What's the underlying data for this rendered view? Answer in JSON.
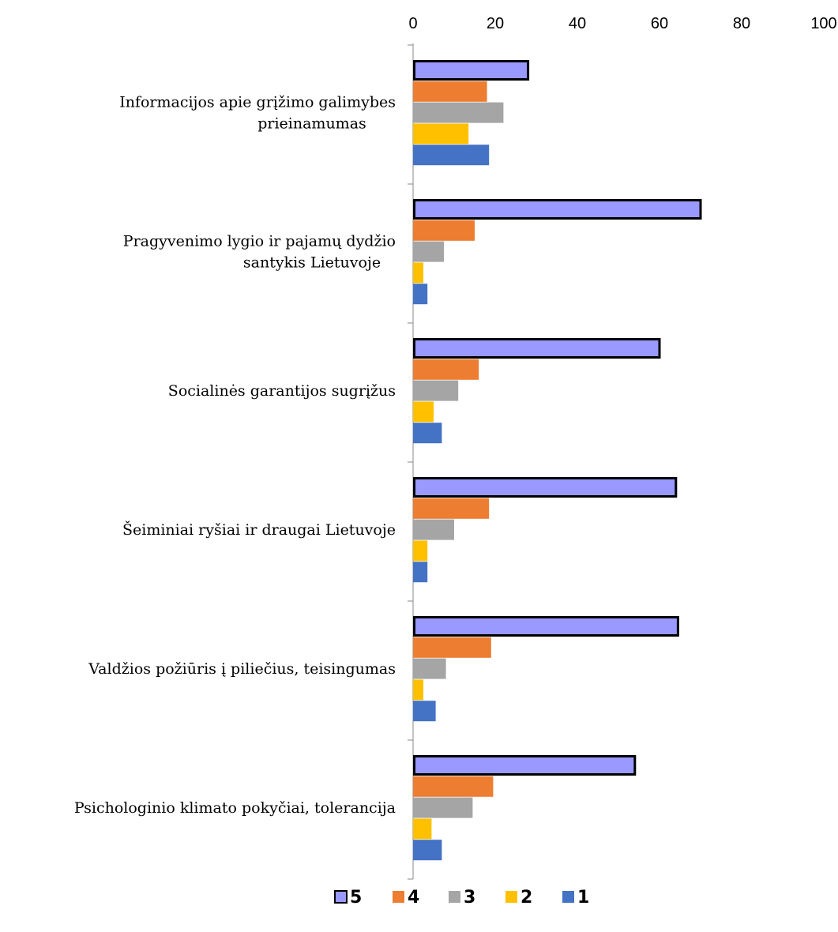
{
  "chart_data": {
    "type": "bar",
    "orientation": "horizontal",
    "categories": [
      [
        "Informacijos apie grįžimo galimybes",
        "prieinamumas"
      ],
      [
        "Pragyvenimo lygio ir  pajamų dydžio",
        "santykis Lietuvoje"
      ],
      [
        "Socialinės garantijos sugrįžus"
      ],
      [
        "Šeiminiai ryšiai ir draugai Lietuvoje"
      ],
      [
        "Valdžios požiūris į piliečius, teisingumas"
      ],
      [
        "Psichologinio klimato pokyčiai, tolerancija"
      ]
    ],
    "series": [
      {
        "name": "5",
        "color": "#9999ff",
        "outlined": true,
        "values": [
          28,
          70,
          60,
          64,
          64.5,
          54
        ]
      },
      {
        "name": "4",
        "color": "#ed7d31",
        "values": [
          18,
          15,
          16,
          18.5,
          19,
          19.5
        ]
      },
      {
        "name": "3",
        "color": "#a5a5a5",
        "values": [
          22,
          7.5,
          11,
          10,
          8,
          14.5
        ]
      },
      {
        "name": "2",
        "color": "#ffc000",
        "values": [
          13.5,
          2.5,
          5,
          3.5,
          2.5,
          4.5
        ]
      },
      {
        "name": "1",
        "color": "#4472c4",
        "values": [
          18.5,
          3.5,
          7,
          3.5,
          5.5,
          7
        ]
      }
    ],
    "xlim": [
      0,
      100
    ],
    "xticks": [
      "0",
      "20",
      "40",
      "60",
      "80",
      "100"
    ],
    "xaxis_position": "top",
    "legend_position": "bottom",
    "grid": false
  }
}
